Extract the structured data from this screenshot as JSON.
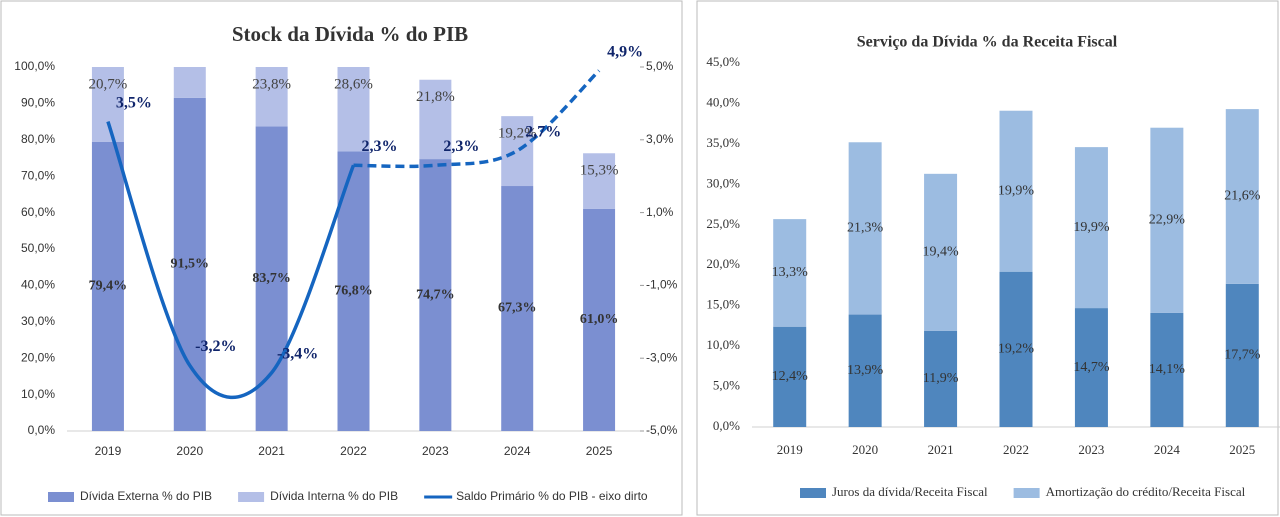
{
  "chart_data": [
    {
      "type": "bar",
      "stacked": true,
      "title": "Stock da Dívida % do PIB",
      "categories": [
        "2019",
        "2020",
        "2021",
        "2022",
        "2023",
        "2024",
        "2025"
      ],
      "series": [
        {
          "name": "Dívida Externa % do PIB",
          "color": "#7b8fd1",
          "values": [
            79.4,
            91.5,
            83.7,
            76.8,
            74.7,
            67.3,
            61.0
          ],
          "value_labels": [
            "79,4%",
            "91,5%",
            "83,7%",
            "76,8%",
            "74,7%",
            "67,3%",
            "61,0%"
          ]
        },
        {
          "name": "Dívida Interna % do PIB",
          "color": "#b4bfe7",
          "values": [
            20.7,
            8.5,
            23.8,
            28.6,
            21.8,
            19.2,
            15.3
          ],
          "value_labels": [
            "20,7%",
            null,
            "23,8%",
            "28,6%",
            "21,8%",
            "19,2%",
            "15,3%"
          ]
        },
        {
          "name": "Saldo Primário % do PIB - eixo dirto",
          "color": "#1565c0",
          "type": "line",
          "axis": "y2",
          "values": [
            3.5,
            -3.2,
            -3.4,
            2.3,
            2.3,
            2.7,
            4.9
          ],
          "value_labels": [
            "3,5%",
            "-3,2%",
            "-3,4%",
            "2,3%",
            "2,3%",
            "2,7%",
            "4,9%"
          ],
          "dashed": [
            false,
            false,
            false,
            false,
            true,
            true,
            true
          ]
        }
      ],
      "ylim": [
        0,
        100
      ],
      "yticks": [
        {
          "value": 0,
          "label": "0,0%"
        },
        {
          "value": 10,
          "label": "10,0%"
        },
        {
          "value": 20,
          "label": "20,0%"
        },
        {
          "value": 30,
          "label": "30,0%"
        },
        {
          "value": 40,
          "label": "40,0%"
        },
        {
          "value": 50,
          "label": "50,0%"
        },
        {
          "value": 60,
          "label": "60,0%"
        },
        {
          "value": 70,
          "label": "70,0%"
        },
        {
          "value": 80,
          "label": "80,0%"
        },
        {
          "value": 90,
          "label": "90,0%"
        },
        {
          "value": 100,
          "label": "100,0%"
        }
      ],
      "y2lim": [
        -5,
        5
      ],
      "y2ticks": [
        {
          "value": -5,
          "label": "-5,0%"
        },
        {
          "value": -3,
          "label": "-3,0%"
        },
        {
          "value": -1,
          "label": "-1,0%"
        },
        {
          "value": 1,
          "label": "1,0%"
        },
        {
          "value": 3,
          "label": "3,0%"
        },
        {
          "value": 5,
          "label": "5,0%"
        }
      ],
      "grid": false,
      "legend": "bottom"
    },
    {
      "type": "bar",
      "stacked": true,
      "title": "Serviço da Dívida % da Receita Fiscal",
      "categories": [
        "2019",
        "2020",
        "2021",
        "2022",
        "2023",
        "2024",
        "2025"
      ],
      "series": [
        {
          "name": "Juros da dívida/Receita Fiscal",
          "color": "#4f86be",
          "values": [
            12.4,
            13.9,
            11.9,
            19.2,
            14.7,
            14.1,
            17.7
          ],
          "value_labels": [
            "12,4%",
            "13,9%",
            "11,9%",
            "19,2%",
            "14,7%",
            "14,1%",
            "17,7%"
          ]
        },
        {
          "name": "Amortização do crédito/Receita Fiscal",
          "color": "#9cbce1",
          "values": [
            13.3,
            21.3,
            19.4,
            19.9,
            19.9,
            22.9,
            21.6
          ],
          "value_labels": [
            "13,3%",
            "21,3%",
            "19,4%",
            "19,9%",
            "19,9%",
            "22,9%",
            "21,6%"
          ]
        }
      ],
      "ylim": [
        0,
        45
      ],
      "yticks": [
        {
          "value": 0,
          "label": "0,0%"
        },
        {
          "value": 5,
          "label": "5,0%"
        },
        {
          "value": 10,
          "label": "10,0%"
        },
        {
          "value": 15,
          "label": "15,0%"
        },
        {
          "value": 20,
          "label": "20,0%"
        },
        {
          "value": 25,
          "label": "25,0%"
        },
        {
          "value": 30,
          "label": "30,0%"
        },
        {
          "value": 35,
          "label": "35,0%"
        },
        {
          "value": 40,
          "label": "40,0%"
        },
        {
          "value": 45,
          "label": "45,0%"
        }
      ],
      "grid": false,
      "legend": "bottom"
    }
  ]
}
